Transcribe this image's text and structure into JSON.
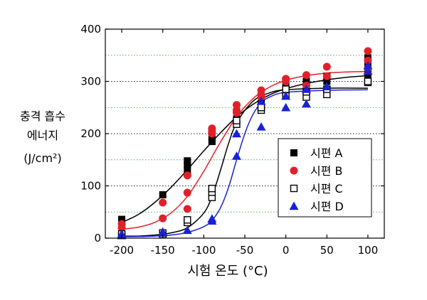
{
  "chart_data": {
    "type": "scatter",
    "xlim": [
      -220,
      120
    ],
    "ylim": [
      0,
      400
    ],
    "xticks": [
      "-200",
      "-150",
      "-100",
      "-50",
      "0",
      "50",
      "100"
    ],
    "yticks": [
      "0",
      "100",
      "200",
      "300",
      "400"
    ],
    "xlabel": "시험 온도 (°C)",
    "ylabel_lines": [
      "충격 흡수",
      "에너지",
      "(J/cm²)"
    ],
    "legend_position": "center-right",
    "grid": {
      "y_dotted_green": [
        50,
        150,
        250,
        350
      ],
      "y_dotted_black": [
        100,
        200,
        300
      ]
    },
    "series": [
      {
        "name": "시편 A",
        "marker": "filled-square",
        "color": "#000000",
        "points": [
          [
            -200,
            36
          ],
          [
            -150,
            83
          ],
          [
            -120,
            130
          ],
          [
            -120,
            140
          ],
          [
            -120,
            148
          ],
          [
            -90,
            185
          ],
          [
            -90,
            190
          ],
          [
            -60,
            222
          ],
          [
            -60,
            228
          ],
          [
            -30,
            252
          ],
          [
            -30,
            258
          ],
          [
            0,
            280
          ],
          [
            0,
            290
          ],
          [
            25,
            282
          ],
          [
            25,
            300
          ],
          [
            50,
            300
          ],
          [
            50,
            310
          ],
          [
            100,
            310
          ],
          [
            100,
            320
          ],
          [
            100,
            330
          ],
          [
            100,
            345
          ]
        ],
        "curve": [
          [
            -200,
            30
          ],
          [
            -180,
            45
          ],
          [
            -160,
            68
          ],
          [
            -140,
            97
          ],
          [
            -120,
            131
          ],
          [
            -100,
            167
          ],
          [
            -80,
            201
          ],
          [
            -60,
            232
          ],
          [
            -40,
            256
          ],
          [
            -20,
            274
          ],
          [
            0,
            286
          ],
          [
            25,
            296
          ],
          [
            50,
            303
          ],
          [
            75,
            308
          ],
          [
            100,
            311
          ]
        ]
      },
      {
        "name": "시편 B",
        "marker": "filled-circle",
        "color": "#e0212a",
        "points": [
          [
            -200,
            20
          ],
          [
            -200,
            27
          ],
          [
            -150,
            38
          ],
          [
            -150,
            68
          ],
          [
            -120,
            56
          ],
          [
            -120,
            87
          ],
          [
            -120,
            120
          ],
          [
            -90,
            200
          ],
          [
            -90,
            205
          ],
          [
            -90,
            210
          ],
          [
            -60,
            240
          ],
          [
            -60,
            245
          ],
          [
            -60,
            255
          ],
          [
            -30,
            270
          ],
          [
            -30,
            275
          ],
          [
            -30,
            283
          ],
          [
            0,
            300
          ],
          [
            0,
            305
          ],
          [
            25,
            292
          ],
          [
            25,
            312
          ],
          [
            50,
            310
          ],
          [
            50,
            328
          ],
          [
            100,
            325
          ],
          [
            100,
            340
          ],
          [
            100,
            358
          ]
        ],
        "curve": [
          [
            -200,
            17
          ],
          [
            -180,
            21
          ],
          [
            -160,
            30
          ],
          [
            -140,
            48
          ],
          [
            -120,
            80
          ],
          [
            -100,
            128
          ],
          [
            -80,
            183
          ],
          [
            -60,
            232
          ],
          [
            -40,
            267
          ],
          [
            -20,
            289
          ],
          [
            0,
            302
          ],
          [
            25,
            311
          ],
          [
            50,
            316
          ],
          [
            75,
            318
          ],
          [
            100,
            319
          ]
        ]
      },
      {
        "name": "시편 C",
        "marker": "open-square",
        "color": "#000000",
        "points": [
          [
            -200,
            5
          ],
          [
            -200,
            8
          ],
          [
            -150,
            7
          ],
          [
            -150,
            10
          ],
          [
            -120,
            30
          ],
          [
            -120,
            35
          ],
          [
            -90,
            78
          ],
          [
            -90,
            88
          ],
          [
            -90,
            95
          ],
          [
            -60,
            218
          ],
          [
            -60,
            225
          ],
          [
            -30,
            245
          ],
          [
            -30,
            250
          ],
          [
            0,
            272
          ],
          [
            0,
            285
          ],
          [
            25,
            270
          ],
          [
            25,
            280
          ],
          [
            50,
            275
          ],
          [
            50,
            285
          ],
          [
            100,
            298
          ],
          [
            100,
            300
          ]
        ],
        "curve": [
          [
            -200,
            4
          ],
          [
            -180,
            4
          ],
          [
            -160,
            6
          ],
          [
            -140,
            10
          ],
          [
            -120,
            20
          ],
          [
            -100,
            48
          ],
          [
            -90,
            80
          ],
          [
            -80,
            128
          ],
          [
            -70,
            180
          ],
          [
            -60,
            221
          ],
          [
            -40,
            262
          ],
          [
            -20,
            278
          ],
          [
            0,
            284
          ],
          [
            50,
            287
          ],
          [
            100,
            287
          ]
        ]
      },
      {
        "name": "시편 D",
        "marker": "filled-triangle",
        "color": "#1a22d4",
        "points": [
          [
            -200,
            5
          ],
          [
            -200,
            8
          ],
          [
            -150,
            10
          ],
          [
            -150,
            12
          ],
          [
            -120,
            15
          ],
          [
            -90,
            33
          ],
          [
            -90,
            37
          ],
          [
            -60,
            157
          ],
          [
            -60,
            200
          ],
          [
            -30,
            213
          ],
          [
            -30,
            262
          ],
          [
            0,
            250
          ],
          [
            0,
            272
          ],
          [
            25,
            257
          ],
          [
            25,
            285
          ],
          [
            50,
            290
          ],
          [
            100,
            320
          ],
          [
            100,
            330
          ]
        ],
        "curve": [
          [
            -200,
            3
          ],
          [
            -180,
            3
          ],
          [
            -160,
            4
          ],
          [
            -140,
            6
          ],
          [
            -120,
            11
          ],
          [
            -100,
            22
          ],
          [
            -90,
            34
          ],
          [
            -80,
            57
          ],
          [
            -70,
            96
          ],
          [
            -60,
            150
          ],
          [
            -50,
            200
          ],
          [
            -40,
            237
          ],
          [
            -30,
            259
          ],
          [
            -20,
            270
          ],
          [
            0,
            279
          ],
          [
            50,
            283
          ],
          [
            100,
            284
          ]
        ]
      }
    ]
  }
}
